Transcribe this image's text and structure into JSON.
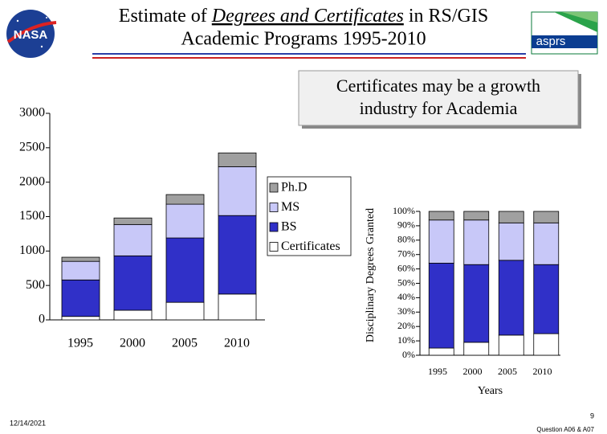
{
  "slide": {
    "title_parts": [
      "Estimate of ",
      "Degrees and Certificates",
      " in RS/GIS",
      "Academic Programs 1995-2010"
    ],
    "callout": [
      "Certificates may be a growth",
      "industry for Academia"
    ],
    "logos": [
      "NASA",
      "asprs"
    ],
    "date": "12/14/2021",
    "page": "9",
    "footer": "Question A06 & A07"
  },
  "chart_data": [
    {
      "type": "stacked_bar",
      "categories": [
        "1995",
        "2000",
        "2005",
        "2010"
      ],
      "series": [
        {
          "name": "Certificates",
          "color": "#ffffff",
          "values": [
            50,
            140,
            255,
            375
          ]
        },
        {
          "name": "BS",
          "color": "#3030c8",
          "values": [
            530,
            790,
            935,
            1140
          ]
        },
        {
          "name": "MS",
          "color": "#c8c8f8",
          "values": [
            270,
            455,
            490,
            710
          ]
        },
        {
          "name": "Ph.D",
          "color": "#a0a0a0",
          "values": [
            60,
            95,
            140,
            200
          ]
        }
      ],
      "ylim": [
        0,
        3000
      ],
      "yticks": [
        0,
        500,
        1000,
        1500,
        2000,
        2500,
        3000
      ],
      "legend": "right"
    },
    {
      "type": "stacked_bar",
      "y_label": "Disciplinary Degrees Granted",
      "x_label": "Years",
      "categories": [
        "1995",
        "2000",
        "2005",
        "2010"
      ],
      "series": [
        {
          "color": "#ffffff",
          "values": [
            5,
            9,
            14,
            15
          ]
        },
        {
          "color": "#3030c8",
          "values": [
            59,
            54,
            52,
            48
          ]
        },
        {
          "color": "#c8c8f8",
          "values": [
            30,
            31,
            26,
            29
          ]
        },
        {
          "color": "#a0a0a0",
          "values": [
            6,
            6,
            8,
            8
          ]
        }
      ],
      "ylim": [
        0,
        100
      ],
      "yticks": [
        {
          "value": 0,
          "label": "0%"
        },
        {
          "value": 10,
          "label": "10%"
        },
        {
          "value": 20,
          "label": "20%"
        },
        {
          "value": 30,
          "label": "30%"
        },
        {
          "value": 40,
          "label": "40%"
        },
        {
          "value": 50,
          "label": "50%"
        },
        {
          "value": 60,
          "label": "60%"
        },
        {
          "value": 70,
          "label": "70%"
        },
        {
          "value": 80,
          "label": "80%"
        },
        {
          "value": 90,
          "label": "90%"
        },
        {
          "value": 100,
          "label": "100%"
        }
      ]
    }
  ]
}
